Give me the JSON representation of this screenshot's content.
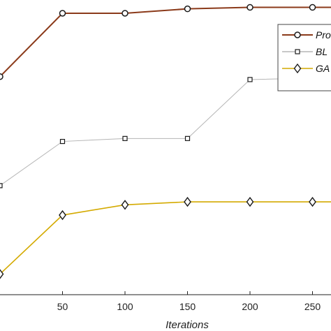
{
  "chart_data": {
    "type": "line",
    "xlabel": "Iterations",
    "x": [
      0,
      50,
      100,
      150,
      200,
      250,
      300
    ],
    "x_ticks": [
      "50",
      "100",
      "150",
      "200",
      "250"
    ],
    "xlim": [
      0,
      300
    ],
    "ylim": [
      0,
      1
    ],
    "grid": false,
    "legend_position": "top-right",
    "series": [
      {
        "name": "Pro",
        "color": "#8B3A1A",
        "marker": "circle",
        "values": [
          0.74,
          0.955,
          0.955,
          0.97,
          0.975,
          0.975,
          0.975
        ]
      },
      {
        "name": "BL",
        "color": "#b5b5b5",
        "marker": "square",
        "values": [
          0.37,
          0.52,
          0.53,
          0.53,
          0.73,
          0.735,
          0.735
        ]
      },
      {
        "name": "GA",
        "color": "#D4AA00",
        "marker": "diamond",
        "values": [
          0.07,
          0.27,
          0.305,
          0.315,
          0.315,
          0.315,
          0.315
        ]
      }
    ]
  }
}
